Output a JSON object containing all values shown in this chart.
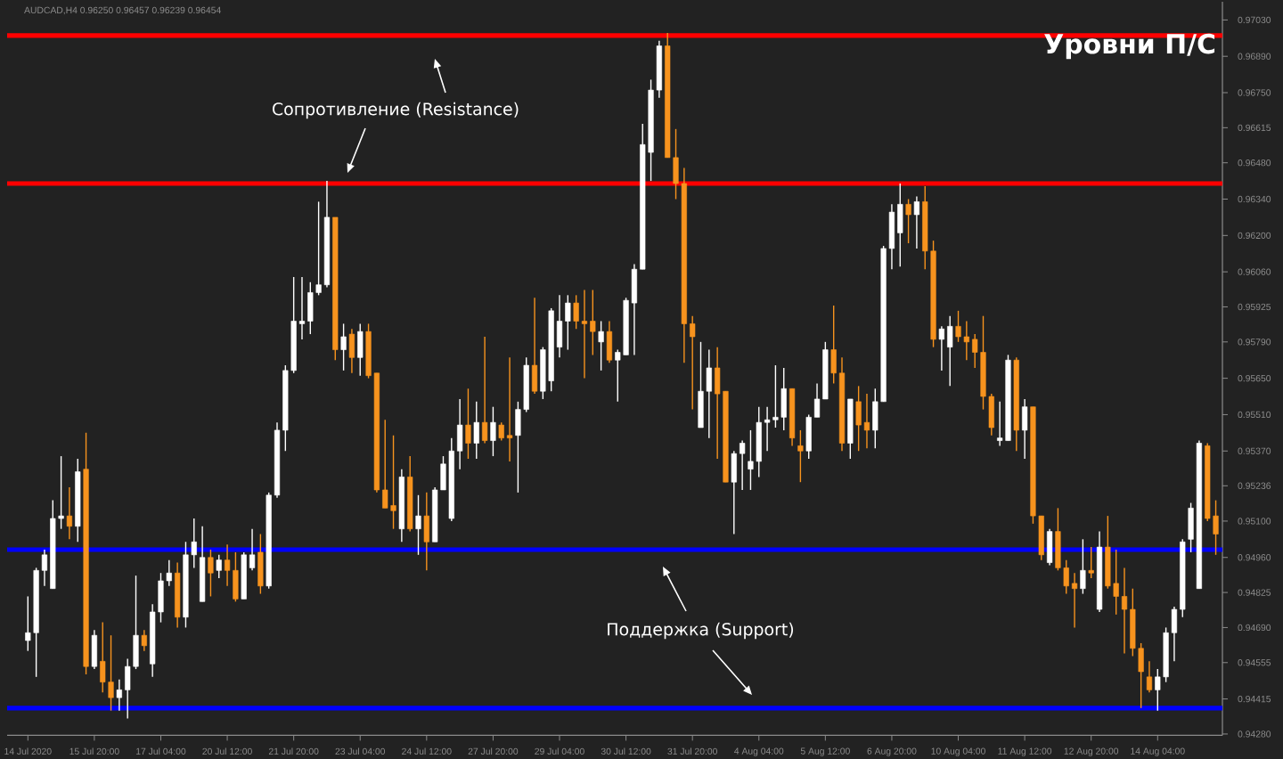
{
  "chart_data": {
    "type": "candlestick",
    "title": "Уровни П/С",
    "subtitle": "AUDCAD,H4 0.96250 0.96457 0.96239 0.96454",
    "annotations": [
      "Сопротивление (Resistance)",
      "Поддержка (Support)"
    ],
    "categories": [
      "14 Jul 2020",
      null,
      null,
      null,
      null,
      null,
      null,
      null,
      "15 Jul 20:00",
      null,
      null,
      null,
      null,
      null,
      null,
      null,
      "17 Jul 04:00",
      null,
      null,
      null,
      null,
      null,
      null,
      null,
      "20 Jul 12:00",
      null,
      null,
      null,
      null,
      null,
      null,
      null,
      "21 Jul 20:00",
      null,
      null,
      null,
      null,
      null,
      null,
      null,
      "23 Jul 04:00",
      null,
      null,
      null,
      null,
      null,
      null,
      null,
      "24 Jul 12:00",
      null,
      null,
      null,
      null,
      null,
      null,
      null,
      "27 Jul 20:00",
      null,
      null,
      null,
      null,
      null,
      null,
      null,
      "29 Jul 04:00",
      null,
      null,
      null,
      null,
      null,
      null,
      null,
      "30 Jul 12:00",
      null,
      null,
      null,
      null,
      null,
      null,
      null,
      "31 Jul 20:00",
      null,
      null,
      null,
      null,
      null,
      null,
      null,
      "4 Aug 04:00",
      null,
      null,
      null,
      null,
      null,
      null,
      null,
      "5 Aug 12:00",
      null,
      null,
      null,
      null,
      null,
      null,
      null,
      "6 Aug 20:00",
      null,
      null,
      null,
      null,
      null,
      null,
      null,
      "10 Aug 04:00",
      null,
      null,
      null,
      null,
      null,
      null,
      null,
      "11 Aug 12:00",
      null,
      null,
      null,
      null,
      null,
      null,
      null,
      "12 Aug 20:00",
      null,
      null,
      null,
      null,
      null,
      null,
      null,
      "14 Aug 04:00",
      null,
      null,
      null,
      null,
      null,
      null,
      null
    ],
    "ohlc": [
      [
        0.9464,
        0.9481,
        0.946,
        0.9467
      ],
      [
        0.9467,
        0.9492,
        0.945,
        0.9491
      ],
      [
        0.9491,
        0.9499,
        0.9485,
        0.9497
      ],
      [
        0.9484,
        0.9518,
        0.9484,
        0.9511
      ],
      [
        0.9511,
        0.9535,
        0.9507,
        0.9512
      ],
      [
        0.9512,
        0.9523,
        0.9503,
        0.9508
      ],
      [
        0.9508,
        0.9534,
        0.9502,
        0.9529
      ],
      [
        0.953,
        0.9544,
        0.9451,
        0.9454
      ],
      [
        0.9454,
        0.9468,
        0.9453,
        0.9466
      ],
      [
        0.9456,
        0.9471,
        0.9444,
        0.9448
      ],
      [
        0.9448,
        0.9466,
        0.9437,
        0.9442
      ],
      [
        0.9442,
        0.9449,
        0.9437,
        0.9445
      ],
      [
        0.9445,
        0.9457,
        0.9434,
        0.9454
      ],
      [
        0.9454,
        0.9489,
        0.9453,
        0.9466
      ],
      [
        0.9466,
        0.9468,
        0.946,
        0.9462
      ],
      [
        0.9455,
        0.9478,
        0.945,
        0.9475
      ],
      [
        0.9475,
        0.949,
        0.9471,
        0.9487
      ],
      [
        0.9487,
        0.9495,
        0.9485,
        0.949
      ],
      [
        0.949,
        0.9494,
        0.9469,
        0.9473
      ],
      [
        0.9473,
        0.9502,
        0.9469,
        0.9497
      ],
      [
        0.9497,
        0.9511,
        0.9492,
        0.9502
      ],
      [
        0.9479,
        0.9508,
        0.9479,
        0.9496
      ],
      [
        0.9496,
        0.9499,
        0.9481,
        0.949
      ],
      [
        0.9491,
        0.9497,
        0.9488,
        0.9495
      ],
      [
        0.9495,
        0.9501,
        0.9485,
        0.9491
      ],
      [
        0.9491,
        0.9498,
        0.9479,
        0.948
      ],
      [
        0.948,
        0.9498,
        0.948,
        0.9497
      ],
      [
        0.9492,
        0.9507,
        0.9491,
        0.9497
      ],
      [
        0.9498,
        0.9505,
        0.9482,
        0.9485
      ],
      [
        0.9485,
        0.9521,
        0.9484,
        0.952
      ],
      [
        0.952,
        0.9548,
        0.9519,
        0.9545
      ],
      [
        0.9545,
        0.957,
        0.9537,
        0.9568
      ],
      [
        0.9568,
        0.9604,
        0.9567,
        0.9587
      ],
      [
        0.9586,
        0.9604,
        0.958,
        0.9587
      ],
      [
        0.9587,
        0.9602,
        0.9582,
        0.9598
      ],
      [
        0.9598,
        0.9633,
        0.9597,
        0.9601
      ],
      [
        0.9601,
        0.9641,
        0.96,
        0.9627
      ],
      [
        0.9627,
        0.9627,
        0.9572,
        0.9576
      ],
      [
        0.9576,
        0.9586,
        0.9568,
        0.9581
      ],
      [
        0.9582,
        0.9584,
        0.9567,
        0.9573
      ],
      [
        0.9573,
        0.9586,
        0.9566,
        0.9583
      ],
      [
        0.9583,
        0.9586,
        0.9565,
        0.9566
      ],
      [
        0.9567,
        0.9567,
        0.9521,
        0.9522
      ],
      [
        0.9522,
        0.9549,
        0.9515,
        0.9515
      ],
      [
        0.9516,
        0.9543,
        0.9507,
        0.9514
      ],
      [
        0.9507,
        0.953,
        0.9502,
        0.9527
      ],
      [
        0.9527,
        0.9535,
        0.9506,
        0.9507
      ],
      [
        0.9507,
        0.952,
        0.9497,
        0.9512
      ],
      [
        0.9512,
        0.9521,
        0.9491,
        0.9502
      ],
      [
        0.9502,
        0.9523,
        0.9502,
        0.9522
      ],
      [
        0.9522,
        0.9535,
        0.9522,
        0.9532
      ],
      [
        0.9511,
        0.9542,
        0.951,
        0.9537
      ],
      [
        0.9537,
        0.9557,
        0.953,
        0.9547
      ],
      [
        0.9547,
        0.9561,
        0.9534,
        0.954
      ],
      [
        0.954,
        0.9556,
        0.9534,
        0.9548
      ],
      [
        0.9548,
        0.9581,
        0.954,
        0.9541
      ],
      [
        0.9541,
        0.9554,
        0.9535,
        0.9548
      ],
      [
        0.9547,
        0.9548,
        0.9541,
        0.9542
      ],
      [
        0.9543,
        0.9573,
        0.9533,
        0.9542
      ],
      [
        0.9543,
        0.9556,
        0.9521,
        0.9553
      ],
      [
        0.9553,
        0.9573,
        0.9552,
        0.957
      ],
      [
        0.957,
        0.9596,
        0.9559,
        0.956
      ],
      [
        0.956,
        0.9577,
        0.9557,
        0.9576
      ],
      [
        0.9564,
        0.9592,
        0.956,
        0.9591
      ],
      [
        0.9577,
        0.9597,
        0.9573,
        0.9587
      ],
      [
        0.9587,
        0.9597,
        0.9576,
        0.9594
      ],
      [
        0.9594,
        0.9597,
        0.9584,
        0.9587
      ],
      [
        0.9587,
        0.9599,
        0.9565,
        0.9586
      ],
      [
        0.9587,
        0.9599,
        0.9574,
        0.9583
      ],
      [
        0.9579,
        0.9587,
        0.9568,
        0.9583
      ],
      [
        0.9583,
        0.9587,
        0.9571,
        0.9572
      ],
      [
        0.9572,
        0.9576,
        0.9556,
        0.9575
      ],
      [
        0.9574,
        0.9596,
        0.9574,
        0.9595
      ],
      [
        0.9594,
        0.9609,
        0.9574,
        0.9607
      ],
      [
        0.9607,
        0.9663,
        0.9607,
        0.9655
      ],
      [
        0.9652,
        0.968,
        0.9641,
        0.9676
      ],
      [
        0.9676,
        0.9695,
        0.9673,
        0.9693
      ],
      [
        0.9693,
        0.9698,
        0.965,
        0.965
      ],
      [
        0.965,
        0.9661,
        0.9634,
        0.964
      ],
      [
        0.964,
        0.9646,
        0.9571,
        0.9586
      ],
      [
        0.9586,
        0.9589,
        0.9553,
        0.9581
      ],
      [
        0.9546,
        0.9579,
        0.9546,
        0.956
      ],
      [
        0.956,
        0.9576,
        0.9542,
        0.9569
      ],
      [
        0.9569,
        0.9577,
        0.9534,
        0.9559
      ],
      [
        0.956,
        0.956,
        0.9525,
        0.9525
      ],
      [
        0.9525,
        0.9537,
        0.9505,
        0.9536
      ],
      [
        0.9536,
        0.9541,
        0.9522,
        0.954
      ],
      [
        0.953,
        0.9545,
        0.9522,
        0.9533
      ],
      [
        0.9533,
        0.9554,
        0.9527,
        0.9548
      ],
      [
        0.9548,
        0.9554,
        0.9537,
        0.9549
      ],
      [
        0.9549,
        0.957,
        0.9546,
        0.955
      ],
      [
        0.955,
        0.9569,
        0.9545,
        0.9561
      ],
      [
        0.9561,
        0.9561,
        0.9539,
        0.9542
      ],
      [
        0.9539,
        0.9545,
        0.9525,
        0.9537
      ],
      [
        0.9537,
        0.9551,
        0.9534,
        0.955
      ],
      [
        0.955,
        0.9563,
        0.955,
        0.9557
      ],
      [
        0.9557,
        0.9579,
        0.9557,
        0.9576
      ],
      [
        0.9576,
        0.9593,
        0.9563,
        0.9567
      ],
      [
        0.9567,
        0.9573,
        0.9537,
        0.954
      ],
      [
        0.954,
        0.9557,
        0.9534,
        0.9557
      ],
      [
        0.9556,
        0.9562,
        0.9537,
        0.9547
      ],
      [
        0.9548,
        0.9559,
        0.9538,
        0.9545
      ],
      [
        0.9545,
        0.9561,
        0.9538,
        0.9556
      ],
      [
        0.9556,
        0.9616,
        0.9556,
        0.9615
      ],
      [
        0.9615,
        0.9632,
        0.9607,
        0.9629
      ],
      [
        0.9621,
        0.964,
        0.9608,
        0.9632
      ],
      [
        0.9632,
        0.9634,
        0.9617,
        0.9628
      ],
      [
        0.9628,
        0.9635,
        0.9615,
        0.9633
      ],
      [
        0.9633,
        0.9639,
        0.9607,
        0.9614
      ],
      [
        0.9614,
        0.9618,
        0.9577,
        0.958
      ],
      [
        0.958,
        0.9585,
        0.9568,
        0.9584
      ],
      [
        0.9577,
        0.9589,
        0.9562,
        0.9585
      ],
      [
        0.9585,
        0.9591,
        0.9579,
        0.9581
      ],
      [
        0.9581,
        0.9587,
        0.9572,
        0.9579
      ],
      [
        0.958,
        0.9582,
        0.9569,
        0.9575
      ],
      [
        0.9575,
        0.9589,
        0.9553,
        0.9558
      ],
      [
        0.9558,
        0.9559,
        0.9543,
        0.9546
      ],
      [
        0.9541,
        0.9556,
        0.9539,
        0.9542
      ],
      [
        0.9541,
        0.9574,
        0.9541,
        0.9572
      ],
      [
        0.9572,
        0.9573,
        0.9537,
        0.9545
      ],
      [
        0.9545,
        0.9557,
        0.9534,
        0.9554
      ],
      [
        0.9554,
        0.9554,
        0.9509,
        0.9512
      ],
      [
        0.9512,
        0.9512,
        0.9495,
        0.9497
      ],
      [
        0.9494,
        0.9507,
        0.9493,
        0.9506
      ],
      [
        0.9506,
        0.9515,
        0.9491,
        0.9492
      ],
      [
        0.9492,
        0.9495,
        0.9482,
        0.9485
      ],
      [
        0.9486,
        0.949,
        0.9469,
        0.9484
      ],
      [
        0.9484,
        0.9503,
        0.9482,
        0.9491
      ],
      [
        0.9491,
        0.95,
        0.9488,
        0.949
      ],
      [
        0.9476,
        0.9506,
        0.9475,
        0.95
      ],
      [
        0.95,
        0.9512,
        0.9484,
        0.9485
      ],
      [
        0.9486,
        0.9499,
        0.9474,
        0.9481
      ],
      [
        0.9481,
        0.9492,
        0.9459,
        0.9476
      ],
      [
        0.9476,
        0.9484,
        0.9458,
        0.9461
      ],
      [
        0.9461,
        0.9463,
        0.9438,
        0.9452
      ],
      [
        0.945,
        0.9456,
        0.9444,
        0.9445
      ],
      [
        0.9445,
        0.9453,
        0.9437,
        0.945
      ],
      [
        0.945,
        0.9469,
        0.9448,
        0.9467
      ],
      [
        0.9467,
        0.9477,
        0.9456,
        0.9476
      ],
      [
        0.9476,
        0.9503,
        0.9473,
        0.9502
      ],
      [
        0.9503,
        0.9517,
        0.9498,
        0.9515
      ],
      [
        0.9484,
        0.9541,
        0.9484,
        0.954
      ],
      [
        0.9539,
        0.954,
        0.951,
        0.9511
      ],
      [
        0.9512,
        0.9518,
        0.9497,
        0.9505
      ]
    ],
    "colors": [
      "#ffffff",
      "#ffffff",
      "#ffffff",
      "#ffffff",
      "#ffffff",
      "#f7931e",
      "#ffffff",
      "#f7931e",
      "#ffffff",
      "#f7931e",
      "#f7931e",
      "#ffffff",
      "#ffffff",
      "#ffffff",
      "#f7931e",
      "#ffffff",
      "#ffffff",
      "#ffffff",
      "#f7931e",
      "#ffffff",
      "#ffffff",
      "#ffffff",
      "#f7931e",
      "#ffffff",
      "#f7931e",
      "#f7931e",
      "#ffffff",
      "#ffffff",
      "#f7931e",
      "#ffffff",
      "#ffffff",
      "#ffffff",
      "#ffffff",
      "#ffffff",
      "#ffffff",
      "#ffffff",
      "#ffffff",
      "#f7931e",
      "#ffffff",
      "#f7931e",
      "#ffffff",
      "#f7931e",
      "#f7931e",
      "#f7931e",
      "#f7931e",
      "#ffffff",
      "#f7931e",
      "#ffffff",
      "#f7931e",
      "#ffffff",
      "#ffffff",
      "#ffffff",
      "#ffffff",
      "#f7931e",
      "#ffffff",
      "#f7931e",
      "#ffffff",
      "#f7931e",
      "#f7931e",
      "#ffffff",
      "#ffffff",
      "#f7931e",
      "#ffffff",
      "#ffffff",
      "#ffffff",
      "#ffffff",
      "#f7931e",
      "#f7931e",
      "#f7931e",
      "#ffffff",
      "#f7931e",
      "#ffffff",
      "#ffffff",
      "#ffffff",
      "#ffffff",
      "#ffffff",
      "#ffffff",
      "#f7931e",
      "#f7931e",
      "#f7931e",
      "#f7931e",
      "#ffffff",
      "#ffffff",
      "#f7931e",
      "#f7931e",
      "#ffffff",
      "#ffffff",
      "#ffffff",
      "#ffffff",
      "#ffffff",
      "#ffffff",
      "#ffffff",
      "#f7931e",
      "#f7931e",
      "#ffffff",
      "#ffffff",
      "#ffffff",
      "#f7931e",
      "#f7931e",
      "#ffffff",
      "#f7931e",
      "#f7931e",
      "#ffffff",
      "#ffffff",
      "#ffffff",
      "#ffffff",
      "#f7931e",
      "#ffffff",
      "#f7931e",
      "#f7931e",
      "#ffffff",
      "#ffffff",
      "#f7931e",
      "#f7931e",
      "#f7931e",
      "#f7931e",
      "#f7931e",
      "#ffffff",
      "#ffffff",
      "#f7931e",
      "#ffffff",
      "#f7931e",
      "#f7931e",
      "#ffffff",
      "#f7931e",
      "#f7931e",
      "#f7931e",
      "#ffffff",
      "#f7931e",
      "#ffffff",
      "#f7931e",
      "#f7931e",
      "#f7931e",
      "#f7931e",
      "#f7931e",
      "#f7931e",
      "#ffffff",
      "#ffffff",
      "#ffffff",
      "#ffffff",
      "#ffffff",
      "#ffffff",
      "#f7931e",
      "#f7931e"
    ],
    "ylim": [
      0.94275,
      0.971
    ],
    "yticks": [
      {
        "value": 0.9428,
        "label": "0.94280"
      },
      {
        "value": 0.94415,
        "label": "0.94415"
      },
      {
        "value": 0.94555,
        "label": "0.94555"
      },
      {
        "value": 0.9469,
        "label": "0.94690"
      },
      {
        "value": 0.94825,
        "label": "0.94825"
      },
      {
        "value": 0.9496,
        "label": "0.94960"
      },
      {
        "value": 0.951,
        "label": "0.95100"
      },
      {
        "value": 0.95236,
        "label": "0.95236"
      },
      {
        "value": 0.9537,
        "label": "0.95370"
      },
      {
        "value": 0.9551,
        "label": "0.95510"
      },
      {
        "value": 0.9565,
        "label": "0.95650"
      },
      {
        "value": 0.9579,
        "label": "0.95790"
      },
      {
        "value": 0.95925,
        "label": "0.95925"
      },
      {
        "value": 0.9606,
        "label": "0.96060"
      },
      {
        "value": 0.962,
        "label": "0.96200"
      },
      {
        "value": 0.9634,
        "label": "0.96340"
      },
      {
        "value": 0.9648,
        "label": "0.96480"
      },
      {
        "value": 0.96615,
        "label": "0.96615"
      },
      {
        "value": 0.9675,
        "label": "0.96750"
      },
      {
        "value": 0.9689,
        "label": "0.96890"
      },
      {
        "value": 0.9703,
        "label": "0.97030"
      }
    ],
    "ref_lines": [
      {
        "axis": "y",
        "value": 0.9697,
        "color": "#ff0000"
      },
      {
        "axis": "y",
        "value": 0.964,
        "color": "#ff0000"
      },
      {
        "axis": "y",
        "value": 0.9499,
        "color": "#0000ff"
      },
      {
        "axis": "y",
        "value": 0.9438,
        "color": "#0000ff"
      }
    ]
  }
}
